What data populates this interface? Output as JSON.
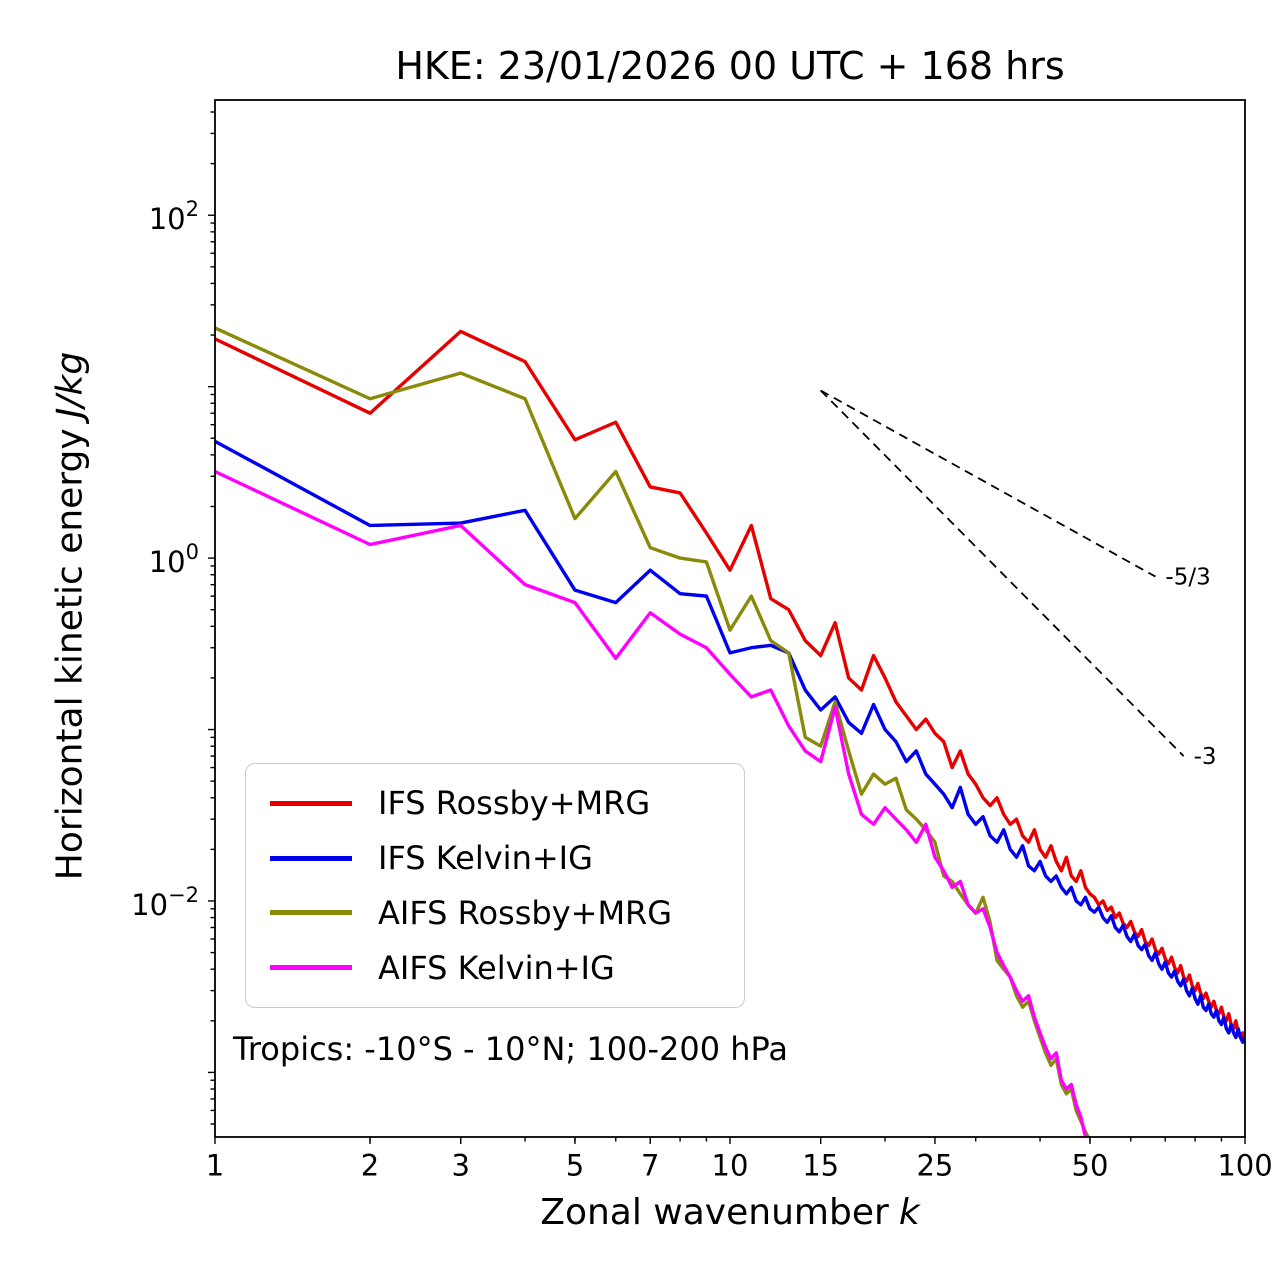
{
  "chart_data": {
    "type": "line",
    "title": "HKE: 23/01/2026 00 UTC + 168 hrs",
    "xlabel": {
      "text": "Zonal wavenumber",
      "math": "k"
    },
    "ylabel": {
      "text": "Horizontal kinetic energy",
      "math": "J/kg"
    },
    "xscale": "log",
    "yscale": "log",
    "xlim": [
      1,
      100
    ],
    "ylim": [
      0.00042,
      470
    ],
    "grid": false,
    "legend_position": "lower left",
    "annotation": "Tropics: -10°S - 10°N; 100-200 hPa",
    "xticks": [
      1,
      2,
      3,
      5,
      7,
      10,
      15,
      25,
      50,
      100
    ],
    "xtick_labels": [
      "1",
      "2",
      "3",
      "5",
      "7",
      "10",
      "15",
      "25",
      "50",
      "100"
    ],
    "yticks": [
      {
        "value": 100,
        "base": "10",
        "exp": "2"
      },
      {
        "value": 1,
        "base": "10",
        "exp": "0"
      },
      {
        "value": 0.01,
        "base": "10",
        "exp": "−2"
      }
    ],
    "reference_lines": [
      {
        "label": "-5/3",
        "x": [
          15,
          67
        ],
        "y": [
          9.5,
          0.78
        ]
      },
      {
        "label": "-3",
        "x": [
          15,
          76
        ],
        "y": [
          9.5,
          0.07
        ]
      }
    ],
    "series": [
      {
        "name": "IFS Rossby+MRG",
        "color": "#e60000",
        "x_start": 1,
        "x_step": 1,
        "y": [
          19,
          7.0,
          21,
          14,
          4.9,
          6.2,
          2.6,
          2.4,
          1.4,
          0.85,
          1.55,
          0.58,
          0.5,
          0.33,
          0.27,
          0.42,
          0.2,
          0.17,
          0.27,
          0.2,
          0.145,
          0.12,
          0.1,
          0.115,
          0.095,
          0.085,
          0.06,
          0.075,
          0.055,
          0.048,
          0.04,
          0.036,
          0.04,
          0.032,
          0.028,
          0.03,
          0.024,
          0.022,
          0.026,
          0.02,
          0.018,
          0.021,
          0.017,
          0.015,
          0.018,
          0.014,
          0.013,
          0.015,
          0.012,
          0.011,
          0.0105,
          0.0095,
          0.01,
          0.0088,
          0.0092,
          0.008,
          0.0085,
          0.0074,
          0.007,
          0.0076,
          0.0066,
          0.0062,
          0.0068,
          0.0058,
          0.0055,
          0.006,
          0.0052,
          0.0049,
          0.0053,
          0.0046,
          0.0043,
          0.0047,
          0.0041,
          0.0038,
          0.0042,
          0.0036,
          0.0034,
          0.0037,
          0.0032,
          0.003,
          0.0033,
          0.0029,
          0.0027,
          0.0029,
          0.0026,
          0.0024,
          0.0026,
          0.0023,
          0.0022,
          0.0024,
          0.0021,
          0.002,
          0.0022,
          0.0019,
          0.0018,
          0.002,
          0.0017,
          0.0016,
          0.0017,
          0.0015
        ]
      },
      {
        "name": "IFS Kelvin+IG",
        "color": "#0000ee",
        "x_start": 1,
        "x_step": 1,
        "y": [
          4.8,
          1.55,
          1.6,
          1.9,
          0.65,
          0.55,
          0.85,
          0.62,
          0.6,
          0.28,
          0.3,
          0.31,
          0.28,
          0.17,
          0.13,
          0.155,
          0.11,
          0.095,
          0.14,
          0.1,
          0.085,
          0.065,
          0.075,
          0.055,
          0.048,
          0.042,
          0.035,
          0.046,
          0.032,
          0.028,
          0.031,
          0.024,
          0.022,
          0.026,
          0.02,
          0.018,
          0.021,
          0.016,
          0.015,
          0.017,
          0.014,
          0.013,
          0.014,
          0.012,
          0.011,
          0.012,
          0.01,
          0.0095,
          0.0105,
          0.009,
          0.0086,
          0.0092,
          0.008,
          0.0075,
          0.0082,
          0.007,
          0.0066,
          0.0072,
          0.0062,
          0.0058,
          0.0064,
          0.0055,
          0.0052,
          0.0056,
          0.0048,
          0.0045,
          0.005,
          0.0043,
          0.004,
          0.0044,
          0.0038,
          0.0036,
          0.0039,
          0.0034,
          0.0032,
          0.0035,
          0.003,
          0.0028,
          0.0031,
          0.0027,
          0.0025,
          0.0028,
          0.0024,
          0.0023,
          0.0025,
          0.0022,
          0.0021,
          0.0023,
          0.002,
          0.0019,
          0.0021,
          0.0018,
          0.0017,
          0.0019,
          0.0017,
          0.0016,
          0.0018,
          0.0016,
          0.0015,
          0.0016
        ]
      },
      {
        "name": "AIFS Rossby+MRG",
        "color": "#8a8a0a",
        "x_start": 1,
        "x_step": 1,
        "y": [
          22,
          8.5,
          12,
          8.5,
          1.7,
          3.2,
          1.15,
          1.0,
          0.95,
          0.38,
          0.6,
          0.33,
          0.28,
          0.09,
          0.08,
          0.145,
          0.075,
          0.042,
          0.055,
          0.048,
          0.052,
          0.034,
          0.03,
          0.026,
          0.022,
          0.014,
          0.013,
          0.011,
          0.0095,
          0.0085,
          0.0105,
          0.0075,
          0.0045,
          0.004,
          0.0036,
          0.0028,
          0.0024,
          0.0026,
          0.002,
          0.0016,
          0.0013,
          0.0011,
          0.0012,
          0.00085,
          0.00075,
          0.0008,
          0.0006,
          0.00052,
          0.00045,
          0.0004,
          0.00034,
          0.0003
        ]
      },
      {
        "name": "AIFS Kelvin+IG",
        "color": "#ff00ff",
        "x_start": 1,
        "x_step": 1,
        "y": [
          3.2,
          1.2,
          1.55,
          0.7,
          0.55,
          0.26,
          0.48,
          0.36,
          0.3,
          0.21,
          0.155,
          0.17,
          0.105,
          0.075,
          0.065,
          0.135,
          0.055,
          0.032,
          0.028,
          0.035,
          0.03,
          0.026,
          0.022,
          0.028,
          0.018,
          0.015,
          0.012,
          0.013,
          0.0095,
          0.0085,
          0.009,
          0.007,
          0.005,
          0.0042,
          0.0036,
          0.003,
          0.0026,
          0.0028,
          0.0021,
          0.0017,
          0.0014,
          0.0012,
          0.0013,
          0.0009,
          0.0008,
          0.00085,
          0.00065,
          0.00055,
          0.00042,
          0.00038,
          0.00032
        ]
      }
    ]
  }
}
